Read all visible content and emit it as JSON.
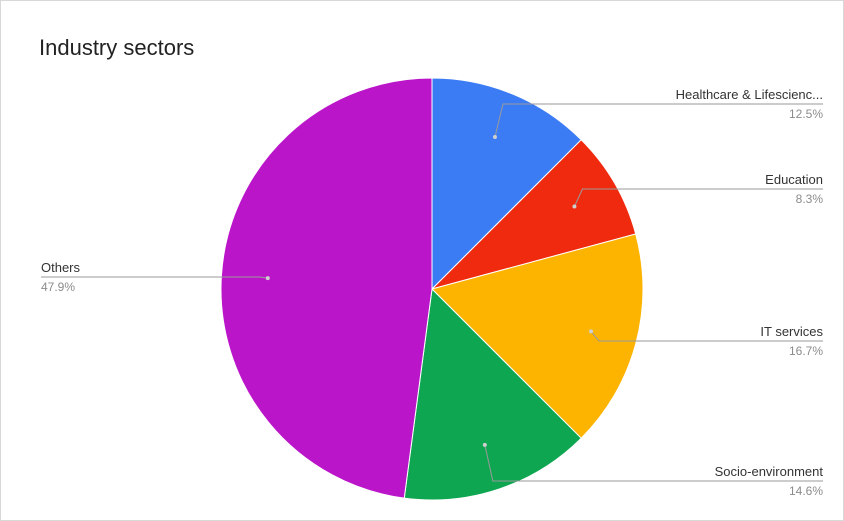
{
  "chart_data": {
    "type": "pie",
    "title": "Industry sectors",
    "slices": [
      {
        "label": "Healthcare & Lifescienc...",
        "value": 12.5,
        "percent_label": "12.5%",
        "color": "#3b7cf5"
      },
      {
        "label": "Education",
        "value": 8.3,
        "percent_label": "8.3%",
        "color": "#f02a0f"
      },
      {
        "label": "IT services",
        "value": 16.7,
        "percent_label": "16.7%",
        "color": "#fcb400"
      },
      {
        "label": "Socio-environment",
        "value": 14.6,
        "percent_label": "14.6%",
        "color": "#0fa651"
      },
      {
        "label": "Others",
        "value": 47.9,
        "percent_label": "47.9%",
        "color": "#bb15c9"
      }
    ],
    "start_angle": "12 o'clock",
    "direction": "clockwise",
    "legend": "labels beside slices with leader lines"
  }
}
